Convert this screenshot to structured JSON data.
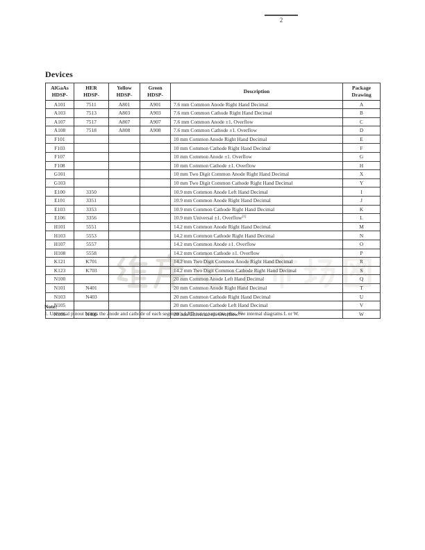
{
  "page_header": {
    "page_number": "2"
  },
  "section_title": "Devices",
  "table": {
    "columns": [
      {
        "lines": [
          "AlGaAs",
          "HDSP-"
        ]
      },
      {
        "lines": [
          "HER",
          "HDSP-"
        ]
      },
      {
        "lines": [
          "Yellow",
          "HDSP-"
        ]
      },
      {
        "lines": [
          "Green",
          "HDSP-"
        ]
      },
      {
        "lines": [
          "Description"
        ]
      },
      {
        "lines": [
          "Package",
          "Drawing"
        ]
      }
    ],
    "rows": [
      {
        "algaas": "A101",
        "her": "7511",
        "yellow": "A801",
        "green": "A901",
        "desc": "7.6 mm Common Anode Right Hand Decimal",
        "pkg": "A"
      },
      {
        "algaas": "A103",
        "her": "7513",
        "yellow": "A803",
        "green": "A903",
        "desc": "7.6 mm Common Cathode Right Hand Decimal",
        "pkg": "B"
      },
      {
        "algaas": "A107",
        "her": "7517",
        "yellow": "A807",
        "green": "A907",
        "desc": "7.6 mm Common Anode ±1. Overflow",
        "pkg": "C"
      },
      {
        "algaas": "A108",
        "her": "7518",
        "yellow": "A808",
        "green": "A908",
        "desc": "7.6 mm Common Cathode ±1. Overflow",
        "pkg": "D"
      },
      {
        "algaas": "F101",
        "her": "",
        "yellow": "",
        "green": "",
        "desc": "10 mm Common Anode Right Hand Decimal",
        "pkg": "E"
      },
      {
        "algaas": "F103",
        "her": "",
        "yellow": "",
        "green": "",
        "desc": "10 mm Common Cathode Right Hand Decimal",
        "pkg": "F"
      },
      {
        "algaas": "F107",
        "her": "",
        "yellow": "",
        "green": "",
        "desc": "10 mm Common Anode ±1. Overflow",
        "pkg": "G"
      },
      {
        "algaas": "F108",
        "her": "",
        "yellow": "",
        "green": "",
        "desc": "10 mm Common Cathode ±1. Overflow",
        "pkg": "H"
      },
      {
        "algaas": "G101",
        "her": "",
        "yellow": "",
        "green": "",
        "desc": "10 mm Two Digit Common Anode Right Hand Decimal",
        "pkg": "X"
      },
      {
        "algaas": "G103",
        "her": "",
        "yellow": "",
        "green": "",
        "desc": "10 mm Two Digit Common Cathode Right Hand Decimal",
        "pkg": "Y"
      },
      {
        "algaas": "E100",
        "her": "3350",
        "yellow": "",
        "green": "",
        "desc": "10.9 mm Common Anode Left Hand Decimal",
        "pkg": "I"
      },
      {
        "algaas": "E101",
        "her": "3351",
        "yellow": "",
        "green": "",
        "desc": "10.9 mm Common Anode Right Hand Decimal",
        "pkg": "J"
      },
      {
        "algaas": "E103",
        "her": "3353",
        "yellow": "",
        "green": "",
        "desc": "10.9 mm Common Cathode Right Hand Decimal",
        "pkg": "K"
      },
      {
        "algaas": "E106",
        "her": "3356",
        "yellow": "",
        "green": "",
        "desc": "10.9 mm Universal ±1. Overflow",
        "sup": "[1]",
        "pkg": "L"
      },
      {
        "algaas": "H101",
        "her": "5551",
        "yellow": "",
        "green": "",
        "desc": "14.2 mm Common Anode Right Hand Decimal",
        "pkg": "M"
      },
      {
        "algaas": "H103",
        "her": "5553",
        "yellow": "",
        "green": "",
        "desc": "14.2 mm Common Cathode Right Hand Decimal",
        "pkg": "N"
      },
      {
        "algaas": "H107",
        "her": "5557",
        "yellow": "",
        "green": "",
        "desc": "14.2 mm Common Anode ±1. Overflow",
        "pkg": "O"
      },
      {
        "algaas": "H108",
        "her": "5558",
        "yellow": "",
        "green": "",
        "desc": "14.2 mm Common Cathode ±1. Overflow",
        "pkg": "P"
      },
      {
        "algaas": "K121",
        "her": "K701",
        "yellow": "",
        "green": "",
        "desc": "14.2 mm Two Digit Common Anode Right Hand Decimal",
        "pkg": "R"
      },
      {
        "algaas": "K123",
        "her": "K703",
        "yellow": "",
        "green": "",
        "desc": "14.2 mm Two Digit Common Cathode Right Hand Decimal",
        "pkg": "S"
      },
      {
        "algaas": "N100",
        "her": "",
        "yellow": "",
        "green": "",
        "desc": "20 mm Common Anode Left Hand Decimal",
        "pkg": "Q"
      },
      {
        "algaas": "N101",
        "her": "N401",
        "yellow": "",
        "green": "",
        "desc": "20 mm Common Anode Right Hand Decimal",
        "pkg": "T"
      },
      {
        "algaas": "N103",
        "her": "N403",
        "yellow": "",
        "green": "",
        "desc": "20 mm Common Cathode Right Hand Decimal",
        "pkg": "U"
      },
      {
        "algaas": "N105",
        "her": "",
        "yellow": "",
        "green": "",
        "desc": "20 mm Common Cathode Left Hand Decimal",
        "pkg": "V"
      },
      {
        "algaas": "N106",
        "her": "N406",
        "yellow": "",
        "green": "",
        "desc": "20 mm Universal ±1. Overflow",
        "sup": "[1]",
        "pkg": "W"
      }
    ]
  },
  "note": {
    "label": "Note:",
    "items": [
      "1. Universal pinout brings the anode and cathode of each segment’s LED out to separate pins. See internal diagrams L or W."
    ]
  },
  "watermark": {
    "text": "维库电子市场网"
  }
}
